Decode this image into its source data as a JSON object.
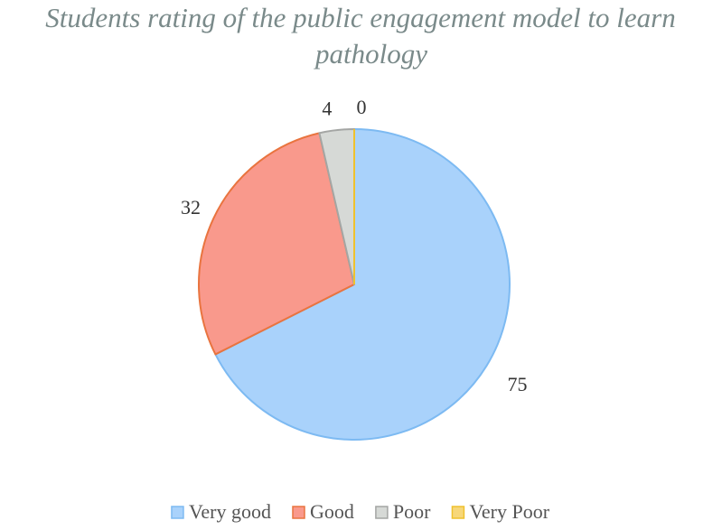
{
  "chart_data": {
    "type": "pie",
    "title_lines": [
      "Students rating of the public engagement model to learn",
      "pathology"
    ],
    "categories": [
      "Very good",
      "Good",
      "Poor",
      "Very Poor"
    ],
    "values": [
      75,
      32,
      4,
      0
    ],
    "colors": {
      "fills": [
        "#a9d2fb",
        "#f9998c",
        "#d6d9d6",
        "#f7d779"
      ],
      "strokes": [
        "#7dbaf2",
        "#e9743f",
        "#a4a6a4",
        "#efc12e"
      ]
    },
    "legend_position": "bottom",
    "start_angle_deg": 0,
    "direction": "clockwise"
  }
}
